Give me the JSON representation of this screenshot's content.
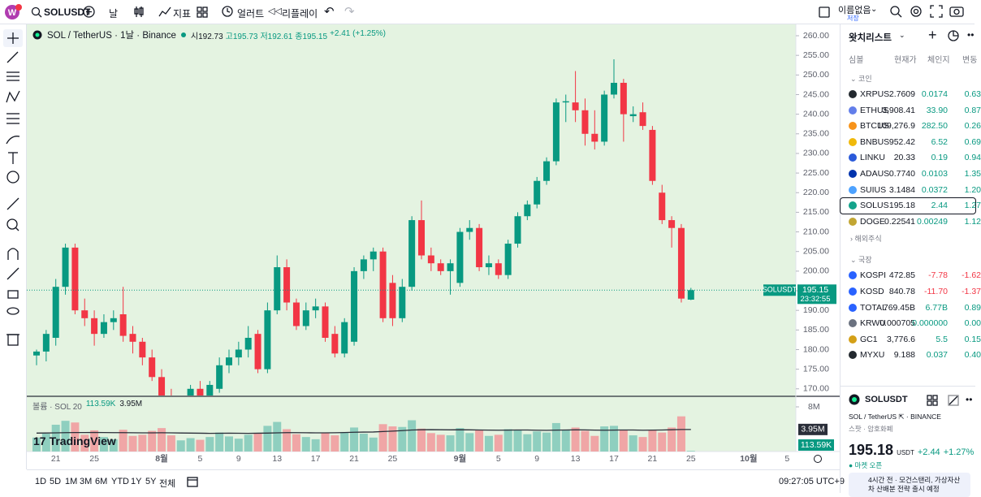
{
  "topbar": {
    "symbol": "SOLUSDT",
    "interval": "날",
    "indicators": "지표",
    "alerts": "얼러트",
    "replay": "리플레이",
    "layout_name": "이름없음",
    "save": "저장"
  },
  "chart_data": {
    "type": "candlestick",
    "title": "SOL / TetherUS · 1날 · Binance",
    "ohlc_label": [
      "시192.73",
      "고195.73",
      "저192.61",
      "종195.15",
      "+2.41 (+1.25%)"
    ],
    "categories": [
      null,
      null,
      "21",
      null,
      null,
      null,
      "25",
      null,
      null,
      null,
      null,
      null,
      null,
      "8월",
      null,
      null,
      null,
      "5",
      null,
      null,
      null,
      "9",
      null,
      null,
      null,
      "13",
      null,
      null,
      null,
      "17",
      null,
      null,
      null,
      "21",
      null,
      null,
      null,
      "25",
      null,
      null,
      null,
      null,
      null,
      null,
      "9월",
      null,
      null,
      null,
      "5",
      null,
      null,
      null,
      "9",
      null,
      null,
      null,
      "13",
      null,
      null,
      null,
      "17",
      null,
      null,
      null,
      "21",
      null,
      null,
      null,
      "25",
      null,
      null,
      null,
      null,
      null,
      "10월",
      null,
      null,
      null,
      "5"
    ],
    "candles": [
      [
        178.5,
        180,
        176,
        179.5
      ],
      [
        179.5,
        185,
        177,
        184
      ],
      [
        183,
        198,
        181,
        196
      ],
      [
        196,
        207,
        194,
        206
      ],
      [
        206,
        207,
        189,
        190
      ],
      [
        190,
        193,
        186,
        188
      ],
      [
        188,
        190,
        181,
        184
      ],
      [
        184,
        189,
        183,
        187
      ],
      [
        187,
        190,
        185,
        188
      ],
      [
        189,
        196,
        182,
        183.5
      ],
      [
        184,
        186,
        179,
        182
      ],
      [
        182,
        183,
        176,
        178
      ],
      [
        178,
        180,
        172,
        173
      ],
      [
        173,
        175,
        166,
        168
      ],
      [
        168,
        170,
        162,
        164
      ],
      [
        164,
        168,
        162,
        167
      ],
      [
        167,
        171,
        165,
        170
      ],
      [
        170,
        172,
        166,
        168
      ],
      [
        168,
        172,
        166,
        171
      ],
      [
        170,
        178,
        169,
        176
      ],
      [
        176,
        180,
        174,
        178
      ],
      [
        178,
        182,
        176,
        180
      ],
      [
        180,
        186,
        178,
        183
      ],
      [
        184,
        185,
        174,
        175
      ],
      [
        175,
        192,
        174,
        190
      ],
      [
        190,
        204,
        189,
        201
      ],
      [
        201,
        203,
        190,
        192
      ],
      [
        192,
        193,
        185,
        186
      ],
      [
        186,
        192,
        185,
        190
      ],
      [
        190,
        193,
        188,
        191
      ],
      [
        191,
        192,
        182,
        183
      ],
      [
        184,
        186,
        178,
        179
      ],
      [
        179,
        188,
        178,
        187
      ],
      [
        182,
        201,
        181,
        200
      ],
      [
        200,
        204,
        198,
        203
      ],
      [
        203,
        206,
        200,
        205
      ],
      [
        205,
        206,
        187,
        188
      ],
      [
        197,
        199,
        186,
        188
      ],
      [
        188,
        198,
        187,
        196
      ],
      [
        196,
        214,
        195,
        213
      ],
      [
        213,
        218,
        203,
        204
      ],
      [
        204,
        206,
        200,
        202
      ],
      [
        202,
        203,
        199,
        200
      ],
      [
        200,
        203,
        194,
        202
      ],
      [
        197,
        211,
        196,
        210
      ],
      [
        210,
        213,
        208,
        211
      ],
      [
        211,
        212,
        200,
        201
      ],
      [
        201,
        204,
        199,
        202
      ],
      [
        202,
        203,
        198,
        199
      ],
      [
        199,
        208,
        198,
        207
      ],
      [
        207,
        215,
        206,
        214
      ],
      [
        214,
        218,
        213,
        217
      ],
      [
        217,
        224,
        216,
        223
      ],
      [
        223,
        229,
        222,
        228
      ],
      [
        228,
        244,
        227,
        243
      ],
      [
        243,
        245,
        238,
        243.3
      ],
      [
        243,
        251,
        238,
        241
      ],
      [
        241,
        244,
        232,
        235
      ],
      [
        235,
        241,
        231,
        233
      ],
      [
        233,
        246,
        232,
        245
      ],
      [
        245,
        254,
        244,
        248
      ],
      [
        248,
        249,
        233,
        240
      ],
      [
        239.5,
        242,
        238,
        240
      ],
      [
        240.5,
        243,
        236,
        237
      ],
      [
        236,
        237,
        222,
        223
      ],
      [
        220,
        222,
        212,
        213
      ],
      [
        213,
        214,
        206,
        211
      ],
      [
        211,
        212,
        192,
        193
      ],
      [
        192.73,
        195.73,
        192.61,
        195.15
      ]
    ],
    "up_color": "#089981",
    "down_color": "#f23645",
    "background": "#e4f3e1",
    "ylim": [
      168.3,
      262.9
    ],
    "yticks": [
      {
        "value": 260,
        "label": "260.00"
      },
      {
        "value": 255,
        "label": "255.00"
      },
      {
        "value": 250,
        "label": "250.00"
      },
      {
        "value": 245,
        "label": "245.00"
      },
      {
        "value": 240,
        "label": "240.00"
      },
      {
        "value": 235,
        "label": "235.00"
      },
      {
        "value": 230,
        "label": "230.00"
      },
      {
        "value": 225,
        "label": "225.00"
      },
      {
        "value": 220,
        "label": "220.00"
      },
      {
        "value": 215,
        "label": "215.00"
      },
      {
        "value": 210,
        "label": "210.00"
      },
      {
        "value": 205,
        "label": "205.00"
      },
      {
        "value": 200,
        "label": "200.00"
      },
      {
        "value": 195,
        "label": "195.00"
      },
      {
        "value": 190,
        "label": "190.00"
      },
      {
        "value": 185,
        "label": "185.00"
      },
      {
        "value": 180,
        "label": "180.00"
      },
      {
        "value": 175,
        "label": "175.00"
      },
      {
        "value": 170,
        "label": "170.00"
      }
    ],
    "last_price": {
      "symbol": "SOLUSDT",
      "value": 195.15,
      "label": "195.15",
      "countdown": "23:32:55"
    },
    "volume": {
      "title": "볼륨 · SOL 20",
      "values": [
        2.5,
        3.2,
        4.8,
        5.5,
        5.2,
        3.0,
        3.8,
        2.6,
        2.2,
        3.9,
        2.8,
        3.0,
        3.7,
        4.2,
        2.9,
        2.0,
        2.4,
        2.1,
        2.6,
        3.4,
        2.7,
        2.3,
        3.0,
        3.2,
        4.6,
        5.3,
        4.0,
        3.1,
        2.6,
        2.2,
        3.3,
        2.9,
        3.5,
        4.3,
        3.2,
        2.5,
        4.9,
        4.5,
        4.4,
        5.6,
        4.1,
        3.3,
        3.0,
        2.9,
        4.2,
        3.3,
        3.9,
        2.8,
        3.0,
        4.0,
        3.8,
        3.1,
        3.6,
        3.4,
        5.1,
        3.9,
        4.3,
        3.7,
        2.8,
        4.5,
        4.6,
        3.9,
        2.9,
        2.6,
        3.8,
        3.4,
        4.3,
        6.3,
        0.11359
      ],
      "ma": [
        3.3,
        3.32,
        3.35,
        3.38,
        3.4,
        3.4,
        3.42,
        3.4,
        3.38,
        3.38,
        3.36,
        3.35,
        3.35,
        3.36,
        3.35,
        3.32,
        3.3,
        3.28,
        3.26,
        3.27,
        3.28,
        3.27,
        3.26,
        3.28,
        3.3,
        3.35,
        3.38,
        3.38,
        3.36,
        3.34,
        3.35,
        3.36,
        3.4,
        3.45,
        3.48,
        3.5,
        3.58,
        3.66,
        3.75,
        3.85,
        3.9,
        3.92,
        3.9,
        3.88,
        3.9,
        3.88,
        3.86,
        3.84,
        3.82,
        3.84,
        3.86,
        3.85,
        3.82,
        3.8,
        3.84,
        3.86,
        3.88,
        3.87,
        3.84,
        3.82,
        3.84,
        3.86,
        3.85,
        3.82,
        3.84,
        3.86,
        3.9,
        3.95,
        3.95
      ],
      "up_color": "#8fcfbf",
      "down_color": "#f0a6a6",
      "ma_color": "#2a2e39",
      "ylim": [
        0,
        9.6
      ],
      "yticks": [
        {
          "value": 8,
          "label": "8M"
        }
      ],
      "last": {
        "value": 0.11359,
        "label": "113.59K"
      },
      "ma_last": {
        "value": 3.95,
        "label": "3.95M"
      }
    },
    "watermark": "TradingView"
  },
  "bottombar": {
    "ranges": [
      "1D",
      "5D",
      "1M",
      "3M",
      "6M",
      "YTD",
      "1Y",
      "5Y",
      "전체"
    ],
    "clock": "09:27:05 UTC+9"
  },
  "watchlist": {
    "title": "왓치리스트",
    "columns": [
      "심볼",
      "현재가",
      "체인지",
      "변동"
    ],
    "sections": [
      {
        "name": "코인",
        "rows": [
          {
            "symbol": "XRPUS",
            "last": "2.7609",
            "change": "0.0174",
            "pct": "0.63",
            "icon": "#23292f"
          },
          {
            "symbol": "ETHUS",
            "last": "3,908.41",
            "change": "33.90",
            "pct": "0.87",
            "icon": "#627eea"
          },
          {
            "symbol": "BTCUS",
            "last": "109,276.9",
            "change": "282.50",
            "pct": "0.26",
            "icon": "#f7931a"
          },
          {
            "symbol": "BNBUS",
            "last": "952.42",
            "change": "6.52",
            "pct": "0.69",
            "icon": "#f0b90b"
          },
          {
            "symbol": "LINKU",
            "last": "20.33",
            "change": "0.19",
            "pct": "0.94",
            "icon": "#2a5ada"
          },
          {
            "symbol": "ADAUS",
            "last": "0.7740",
            "change": "0.0103",
            "pct": "1.35",
            "icon": "#0033ad"
          },
          {
            "symbol": "SUIUS",
            "last": "3.1484",
            "change": "0.0372",
            "pct": "1.20",
            "icon": "#4da2ff"
          },
          {
            "symbol": "SOLUS",
            "last": "195.18",
            "change": "2.44",
            "pct": "1.27",
            "icon": "#14a38b"
          },
          {
            "symbol": "DOGE",
            "last": "0.22541",
            "change": "0.00249",
            "pct": "1.12",
            "icon": "#c2a633"
          }
        ]
      },
      {
        "name": "해외주식",
        "rows": []
      },
      {
        "name": "국장",
        "rows": [
          {
            "symbol": "KOSPI",
            "last": "472.85",
            "change": "-7.78",
            "pct": "-1.62",
            "icon": "#2962ff"
          },
          {
            "symbol": "KOSD",
            "last": "840.78",
            "change": "-11.70",
            "pct": "-1.37",
            "icon": "#2962ff"
          },
          {
            "symbol": "TOTAL",
            "last": "769.45B",
            "change": "6.77B",
            "pct": "0.89",
            "icon": "#2962ff"
          },
          {
            "symbol": "KRWU",
            "last": "0.000705",
            "change": "0.000000",
            "pct": "0.00",
            "icon": "#6b7280"
          },
          {
            "symbol": "GC1",
            "last": "3,776.6",
            "change": "5.5",
            "pct": "0.15",
            "icon": "#d4a017"
          },
          {
            "symbol": "MYXU",
            "last": "9.188",
            "change": "0.037",
            "pct": "0.40",
            "icon": "#23292f"
          }
        ]
      }
    ]
  },
  "detail": {
    "symbol": "SOLUSDT",
    "pair": "SOL / TetherUS",
    "exchange": "· BINANCE",
    "kind": "스팟 · 암호화폐",
    "price": "195.18",
    "currency": "USDT",
    "change": "+2.44",
    "change_pct": "+1.27%",
    "status": "마켓 오픈",
    "news": "4시간 전 · 모건스탠리, 가상자산 차 산배분 전략 출시 예정"
  }
}
